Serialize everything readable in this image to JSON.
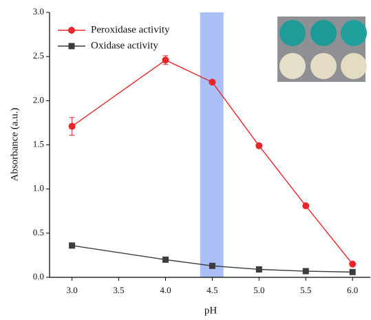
{
  "chart_data": {
    "type": "line",
    "x_label": "pH",
    "y_label": "Absorbance (a.u.)",
    "x": [
      3.0,
      4.0,
      4.5,
      5.0,
      5.5,
      6.0
    ],
    "series": [
      {
        "name": "Peroxidase activity",
        "color": "#e8262a",
        "marker": "circle",
        "values": [
          1.71,
          2.46,
          2.21,
          1.49,
          0.81,
          0.15
        ],
        "errors": [
          0.1,
          0.05,
          null,
          null,
          null,
          null
        ]
      },
      {
        "name": "Oxidase activity",
        "color": "#3c3c3c",
        "marker": "square",
        "values": [
          0.36,
          0.2,
          0.13,
          0.09,
          0.07,
          0.06
        ]
      }
    ],
    "highlight_range": [
      4.37,
      4.62
    ],
    "highlight_color": "#a9bff5",
    "xlim": [
      2.76,
      6.19
    ],
    "ylim": [
      0,
      3.0
    ],
    "xticks": [
      {
        "value": 3,
        "label": "3.0"
      },
      {
        "value": 3.5,
        "label": "3.5"
      },
      {
        "value": 4,
        "label": "4.0"
      },
      {
        "value": 4.5,
        "label": "4.5"
      },
      {
        "value": 5,
        "label": "5.0"
      },
      {
        "value": 5.5,
        "label": "5.5"
      },
      {
        "value": 6,
        "label": "6.0"
      }
    ],
    "yticks": [
      {
        "value": 0,
        "label": "0.0"
      },
      0.5,
      {
        "value": 1,
        "label": "1.0"
      },
      1.5,
      {
        "value": 2,
        "label": "2.0"
      },
      2.5,
      {
        "value": 3,
        "label": "3.0"
      }
    ],
    "legend": "top-left"
  }
}
